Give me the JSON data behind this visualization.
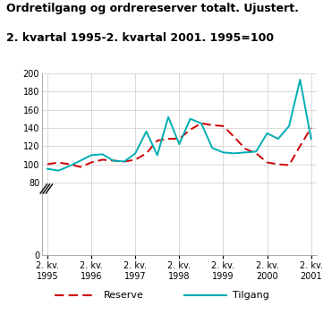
{
  "title_line1": "Ordretilgang og ordrereserver totalt. Ujustert.",
  "title_line2": "2. kvartal 1995-2. kvartal 2001. 1995=100",
  "title_color": "#000000",
  "header_bar_color": "#2ab5be",
  "ylim": [
    0,
    200
  ],
  "yticks": [
    0,
    80,
    100,
    120,
    140,
    160,
    180,
    200
  ],
  "background_color": "#ffffff",
  "grid_color": "#cccccc",
  "x_labels": [
    "2. kv.\n1995",
    "2. kv.\n1996",
    "2. kv.\n1997",
    "2. kv.\n1998",
    "2. kv.\n1999",
    "2. kv.\n2000",
    "2. kv.\n2001"
  ],
  "x_positions": [
    0,
    4,
    8,
    12,
    16,
    20,
    24
  ],
  "reserve_color": "#cc0000",
  "tilgang_color": "#00adb5",
  "reserve_label": "Reserve",
  "tilgang_label": "Tilgang",
  "reserve_x": [
    0,
    1,
    2,
    3,
    4,
    5,
    6,
    7,
    8,
    9,
    10,
    11,
    12,
    13,
    14,
    15,
    16,
    17,
    18,
    19,
    20,
    21,
    22,
    23,
    24
  ],
  "reserve_y": [
    100,
    102,
    100,
    97,
    102,
    105,
    104,
    103,
    105,
    112,
    126,
    128,
    128,
    138,
    145,
    143,
    142,
    130,
    117,
    112,
    102,
    100,
    99,
    120,
    140
  ],
  "tilgang_x": [
    0,
    1,
    2,
    3,
    4,
    5,
    6,
    7,
    8,
    9,
    10,
    11,
    12,
    13,
    14,
    15,
    16,
    17,
    18,
    19,
    20,
    21,
    22,
    23,
    24
  ],
  "tilgang_y": [
    95,
    93,
    98,
    104,
    110,
    111,
    104,
    103,
    112,
    136,
    110,
    152,
    122,
    150,
    145,
    118,
    113,
    112,
    113,
    114,
    134,
    128,
    142,
    193,
    128
  ],
  "fig_width": 3.61,
  "fig_height": 3.61,
  "dpi": 100
}
